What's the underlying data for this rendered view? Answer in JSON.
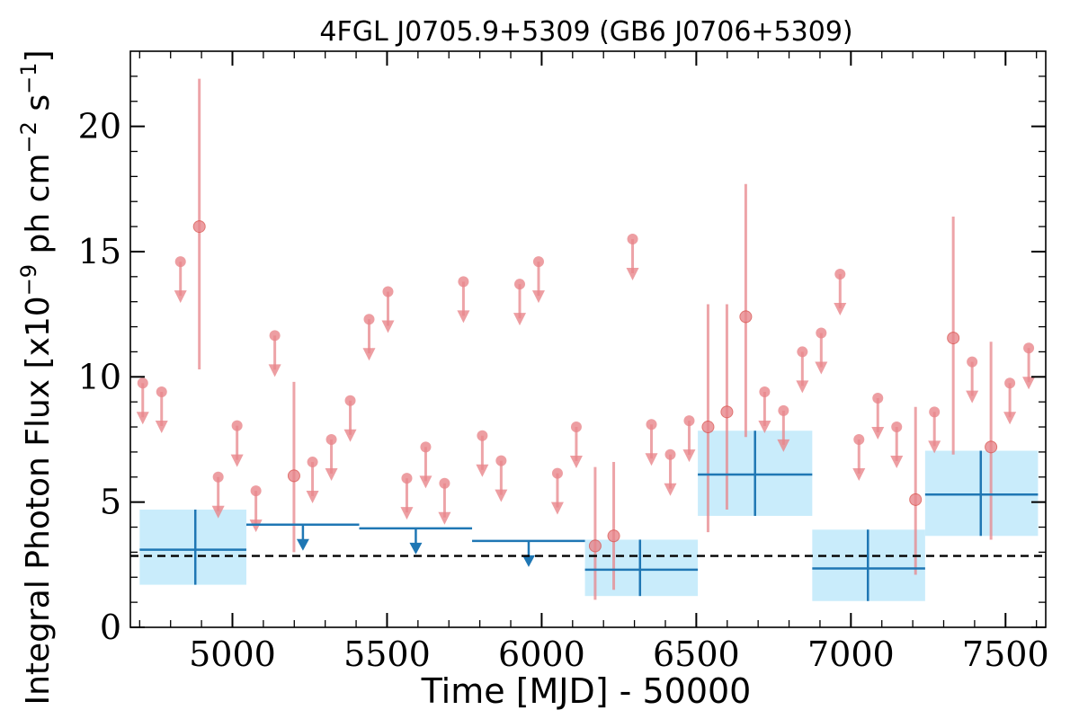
{
  "chart_data": {
    "type": "scatter",
    "title": "4FGL J0705.9+5309 (GB6 J0706+5309)",
    "xlabel": "Time [MJD] - 50000",
    "ylabel_prefix": "Integral Photon Flux [x10",
    "ylabel_exp1": "−9",
    "ylabel_mid": " ph cm",
    "ylabel_exp2": "−2",
    "ylabel_mid2": " s",
    "ylabel_exp3": "−1",
    "ylabel_suffix": "]",
    "xlim": [
      4670,
      7630
    ],
    "ylim": [
      0,
      23
    ],
    "xticks": [
      5000,
      5500,
      6000,
      6500,
      7000,
      7500
    ],
    "xtick_labels": [
      "5000",
      "5500",
      "6000",
      "6500",
      "7000",
      "7500"
    ],
    "yticks": [
      0,
      5,
      10,
      15,
      20
    ],
    "ytick_labels": [
      "0",
      "5",
      "10",
      "15",
      "20"
    ],
    "reference_level": 2.85,
    "colors": {
      "short_bins": "#e8868b",
      "long_bins": "#1f77b4",
      "long_bin_band": "#c9ecfb",
      "reference": "#000000"
    },
    "short_detections": [
      {
        "x": 4893,
        "y": 16.0,
        "lo": 10.3,
        "hi": 21.9
      },
      {
        "x": 5199,
        "y": 6.05,
        "lo": 3.0,
        "hi": 9.8
      },
      {
        "x": 6173,
        "y": 3.25,
        "lo": 1.1,
        "hi": 6.4
      },
      {
        "x": 6233,
        "y": 3.65,
        "lo": 1.5,
        "hi": 6.6
      },
      {
        "x": 6538,
        "y": 8.0,
        "lo": 3.8,
        "hi": 12.9
      },
      {
        "x": 6599,
        "y": 8.6,
        "lo": 4.7,
        "hi": 12.9
      },
      {
        "x": 6660,
        "y": 12.4,
        "lo": 7.6,
        "hi": 17.7
      },
      {
        "x": 7209,
        "y": 5.1,
        "lo": 2.1,
        "hi": 8.8
      },
      {
        "x": 7331,
        "y": 11.55,
        "lo": 6.9,
        "hi": 16.4
      },
      {
        "x": 7453,
        "y": 7.2,
        "lo": 3.5,
        "hi": 11.4
      }
    ],
    "short_upper_limits": [
      {
        "x": 4710,
        "y": 9.75
      },
      {
        "x": 4771,
        "y": 9.4
      },
      {
        "x": 4832,
        "y": 14.6
      },
      {
        "x": 4954,
        "y": 6.0
      },
      {
        "x": 5015,
        "y": 8.05
      },
      {
        "x": 5076,
        "y": 5.45
      },
      {
        "x": 5137,
        "y": 11.65
      },
      {
        "x": 5259,
        "y": 6.6
      },
      {
        "x": 5320,
        "y": 7.5
      },
      {
        "x": 5381,
        "y": 9.05
      },
      {
        "x": 5442,
        "y": 12.3
      },
      {
        "x": 5503,
        "y": 13.4
      },
      {
        "x": 5564,
        "y": 5.95
      },
      {
        "x": 5625,
        "y": 7.2
      },
      {
        "x": 5686,
        "y": 5.75
      },
      {
        "x": 5747,
        "y": 13.8
      },
      {
        "x": 5808,
        "y": 7.65
      },
      {
        "x": 5869,
        "y": 6.65
      },
      {
        "x": 5929,
        "y": 13.7
      },
      {
        "x": 5990,
        "y": 14.6
      },
      {
        "x": 6051,
        "y": 6.15
      },
      {
        "x": 6112,
        "y": 8.0
      },
      {
        "x": 6294,
        "y": 15.5
      },
      {
        "x": 6355,
        "y": 8.1
      },
      {
        "x": 6416,
        "y": 6.9
      },
      {
        "x": 6477,
        "y": 8.25
      },
      {
        "x": 6721,
        "y": 9.4
      },
      {
        "x": 6782,
        "y": 8.65
      },
      {
        "x": 6843,
        "y": 11.0
      },
      {
        "x": 6904,
        "y": 11.75
      },
      {
        "x": 6965,
        "y": 14.1
      },
      {
        "x": 7026,
        "y": 7.5
      },
      {
        "x": 7087,
        "y": 9.15
      },
      {
        "x": 7148,
        "y": 8.0
      },
      {
        "x": 7270,
        "y": 8.6
      },
      {
        "x": 7392,
        "y": 10.6
      },
      {
        "x": 7514,
        "y": 9.75
      },
      {
        "x": 7575,
        "y": 11.15
      }
    ],
    "long_detections": [
      {
        "x0": 4700,
        "x1": 5045,
        "xc": 4880,
        "y": 3.1,
        "lo": 1.7,
        "hi": 4.7
      },
      {
        "x0": 6140,
        "x1": 6505,
        "xc": 6318,
        "y": 2.3,
        "lo": 1.25,
        "hi": 3.5
      },
      {
        "x0": 6505,
        "x1": 6875,
        "xc": 6690,
        "y": 6.1,
        "lo": 4.45,
        "hi": 7.85
      },
      {
        "x0": 6875,
        "x1": 7240,
        "xc": 7055,
        "y": 2.35,
        "lo": 1.05,
        "hi": 3.9
      },
      {
        "x0": 7240,
        "x1": 7605,
        "xc": 7420,
        "y": 5.3,
        "lo": 3.65,
        "hi": 7.05
      }
    ],
    "long_upper_limits": [
      {
        "x0": 5045,
        "x1": 5410,
        "xc": 5228,
        "y": 4.1
      },
      {
        "x0": 5410,
        "x1": 5775,
        "xc": 5593,
        "y": 3.95
      },
      {
        "x0": 5775,
        "x1": 6140,
        "xc": 5958,
        "y": 3.45
      }
    ]
  }
}
